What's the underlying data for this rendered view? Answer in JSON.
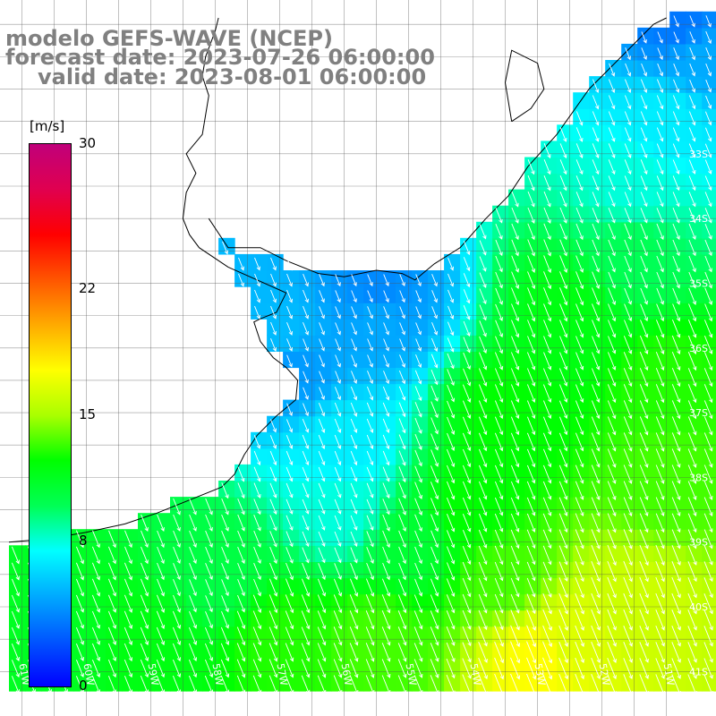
{
  "title": {
    "line1": "modelo GEFS-WAVE (NCEP)",
    "line2": "forecast date: 2023-07-26 06:00:00",
    "line3": "valid date: 2023-08-01 06:00:00"
  },
  "legend": {
    "unit": "[m/s]",
    "ticks": [
      "30",
      "22",
      "15",
      "8",
      "0"
    ],
    "tick_values": [
      30,
      22,
      15,
      8,
      0
    ],
    "max": 30,
    "min": 0,
    "colors": [
      "#0000ff",
      "#0055ff",
      "#00aaff",
      "#00ffff",
      "#00ff55",
      "#00ff00",
      "#aaff00",
      "#ffff00",
      "#ffaa00",
      "#ff5500",
      "#ff0000",
      "#e00050",
      "#c0007a"
    ]
  },
  "map": {
    "lat_labels": [
      "33S",
      "34S",
      "35S",
      "36S",
      "37S",
      "38S",
      "39S",
      "40S",
      "41S"
    ],
    "lon_labels": [
      "61W",
      "60W",
      "59W",
      "58W",
      "57W",
      "56W",
      "55W",
      "54W",
      "53W",
      "52W",
      "51W"
    ],
    "lat_range": [
      -41.3,
      -30.9
    ],
    "lon_range": [
      -61.2,
      -50.3
    ],
    "vector_direction": "toward south-southeast",
    "ocean_speed_field": [
      {
        "lon": -60.5,
        "lat": -40.5,
        "speed": 11.5
      },
      {
        "lon": -58.0,
        "lat": -39.5,
        "speed": 10.5
      },
      {
        "lon": -57.0,
        "lat": -35.8,
        "speed": 5.5
      },
      {
        "lon": -56.8,
        "lat": -36.3,
        "speed": 4.5
      },
      {
        "lon": -55.5,
        "lat": -35.2,
        "speed": 4.0
      },
      {
        "lon": -55.5,
        "lat": -35.5,
        "speed": 5.0
      },
      {
        "lon": -56.0,
        "lat": -37.5,
        "speed": 7.0
      },
      {
        "lon": -56.0,
        "lat": -38.5,
        "speed": 8.0
      },
      {
        "lon": -53.5,
        "lat": -37.0,
        "speed": 12.5
      },
      {
        "lon": -52.5,
        "lat": -35.5,
        "speed": 12.0
      },
      {
        "lon": -51.5,
        "lat": -34.5,
        "speed": 10.0
      },
      {
        "lon": -51.5,
        "lat": -33.5,
        "speed": 8.0
      },
      {
        "lon": -51.0,
        "lat": -32.5,
        "speed": 7.0
      },
      {
        "lon": -50.5,
        "lat": -31.5,
        "speed": 5.0
      },
      {
        "lon": -50.8,
        "lat": -31.0,
        "speed": 3.5
      },
      {
        "lon": -54.0,
        "lat": -38.5,
        "speed": 12.5
      },
      {
        "lon": -53.5,
        "lat": -39.5,
        "speed": 13.5
      },
      {
        "lon": -53.0,
        "lat": -40.8,
        "speed": 17.5
      },
      {
        "lon": -52.5,
        "lat": -40.5,
        "speed": 16.5
      },
      {
        "lon": -51.5,
        "lat": -40.0,
        "speed": 16.0
      },
      {
        "lon": -51.0,
        "lat": -38.0,
        "speed": 13.5
      },
      {
        "lon": -51.0,
        "lat": -36.5,
        "speed": 13.0
      },
      {
        "lon": -59.0,
        "lat": -40.5,
        "speed": 12.0
      },
      {
        "lon": -57.0,
        "lat": -40.5,
        "speed": 13.0
      },
      {
        "lon": -55.5,
        "lat": -40.5,
        "speed": 13.5
      },
      {
        "lon": -55.0,
        "lat": -39.0,
        "speed": 11.0
      }
    ]
  }
}
